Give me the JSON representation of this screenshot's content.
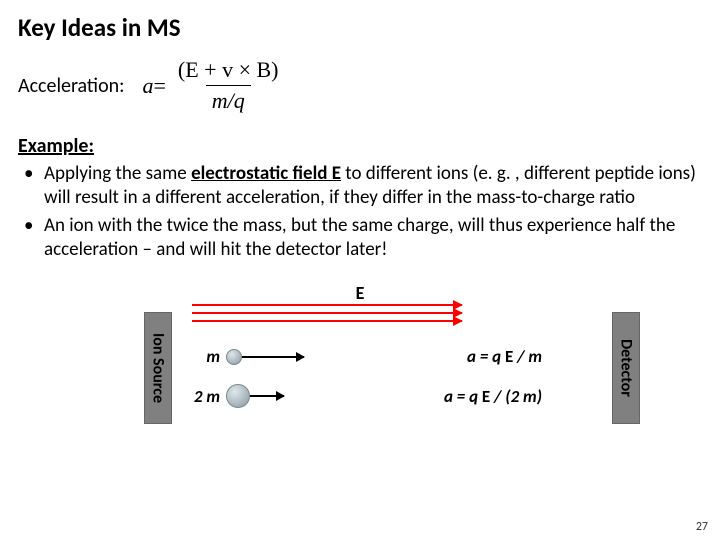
{
  "title": "Key Ideas in MS",
  "accel_label": "Acceleration:",
  "formula": {
    "lhs": "a",
    "eq": " = ",
    "num": "(E + v × B)",
    "den": "m/q"
  },
  "example_heading": "Example:",
  "bullets": {
    "b1_pre": "Applying the same ",
    "b1_mid": "electrostatic field E",
    "b1_post": " to different ions (e. g. , different peptide ions) will result in a different acceleration, if they differ in the mass-to-charge ratio",
    "b2": "An ion with the twice the mass, but the same charge, will thus experience half the acceleration – and will hit the detector later!"
  },
  "diagram": {
    "e_label": "E",
    "ion_source": "Ion Source",
    "detector": "Detector",
    "row1": {
      "m": "m",
      "eqn_lhs": "a = q ",
      "eqn_E": "E",
      "eqn_rhs": " / m",
      "arrow_len": 62
    },
    "row2": {
      "m": "2 m",
      "eqn_lhs": "a = q ",
      "eqn_E": "E",
      "eqn_rhs": " / (2 m)",
      "arrow_len": 34
    },
    "field_line_color": "#ff0000",
    "box_color": "#808080"
  },
  "page_number": "27"
}
